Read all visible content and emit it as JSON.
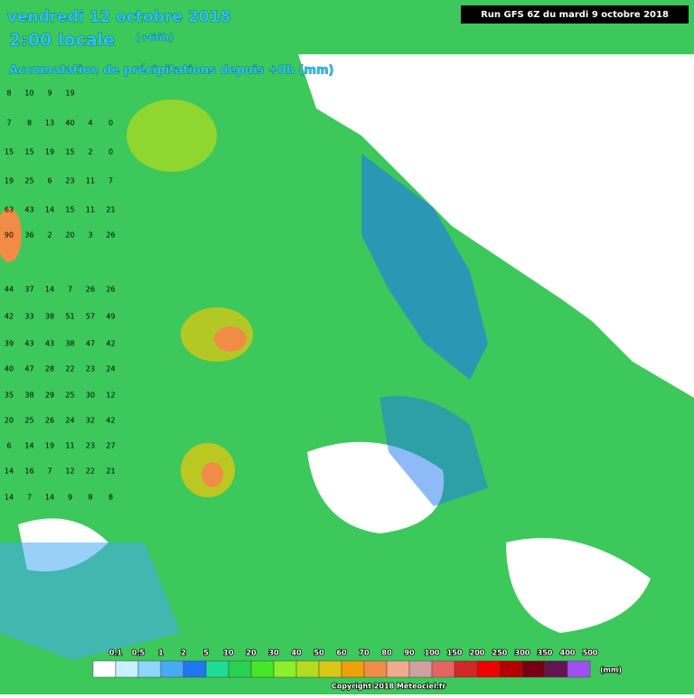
{
  "header": {
    "date": "vendredi 12 octobre 2018",
    "time": "2:00 locale",
    "lead": "(+66h)",
    "subtitle": "Accumulation de précipitations depuis +0h (mm)",
    "run": "Run GFS 6Z du mardi 9 octobre 2018"
  },
  "grid": {
    "rows": [
      [
        8,
        10,
        9,
        19
      ],
      [
        7,
        8,
        13,
        40,
        4,
        0
      ],
      [
        15,
        15,
        19,
        15,
        2,
        0
      ],
      [
        19,
        25,
        6,
        23,
        11,
        7
      ],
      [
        63,
        43,
        14,
        15,
        11,
        21
      ],
      [
        90,
        36,
        2,
        20,
        3,
        26
      ],
      [
        44,
        37,
        14,
        7,
        26,
        26
      ],
      [
        42,
        33,
        38,
        51,
        57,
        49
      ],
      [
        39,
        43,
        43,
        38,
        47,
        42
      ],
      [
        40,
        47,
        28,
        22,
        23,
        24
      ],
      [
        35,
        38,
        29,
        25,
        30,
        12
      ],
      [
        20,
        25,
        26,
        24,
        32,
        42
      ],
      [
        6,
        14,
        19,
        11,
        23,
        27
      ],
      [
        14,
        16,
        7,
        12,
        22,
        21
      ],
      [
        14,
        7,
        14,
        9,
        8,
        8
      ]
    ]
  },
  "legend": {
    "labels": [
      "0.1",
      "0.5",
      "1",
      "2",
      "5",
      "10",
      "20",
      "30",
      "40",
      "50",
      "60",
      "70",
      "80",
      "90",
      "100",
      "150",
      "200",
      "250",
      "300",
      "350",
      "400",
      "500"
    ],
    "colors": [
      "#ffffff",
      "#c8f0ff",
      "#8cd7fa",
      "#46aaf5",
      "#1e78f0",
      "#1edc96",
      "#28d250",
      "#46e628",
      "#8cf028",
      "#b4dc1e",
      "#dcc814",
      "#f0a00a",
      "#f08c46",
      "#f0aa8c",
      "#d2a0a0",
      "#e66464",
      "#d22828",
      "#f00000",
      "#b40000",
      "#780014",
      "#641450",
      "#a050f0"
    ],
    "unit": "(mm)"
  },
  "footer": {
    "copyright": "Copyright 2018 Meteociel.fr"
  }
}
